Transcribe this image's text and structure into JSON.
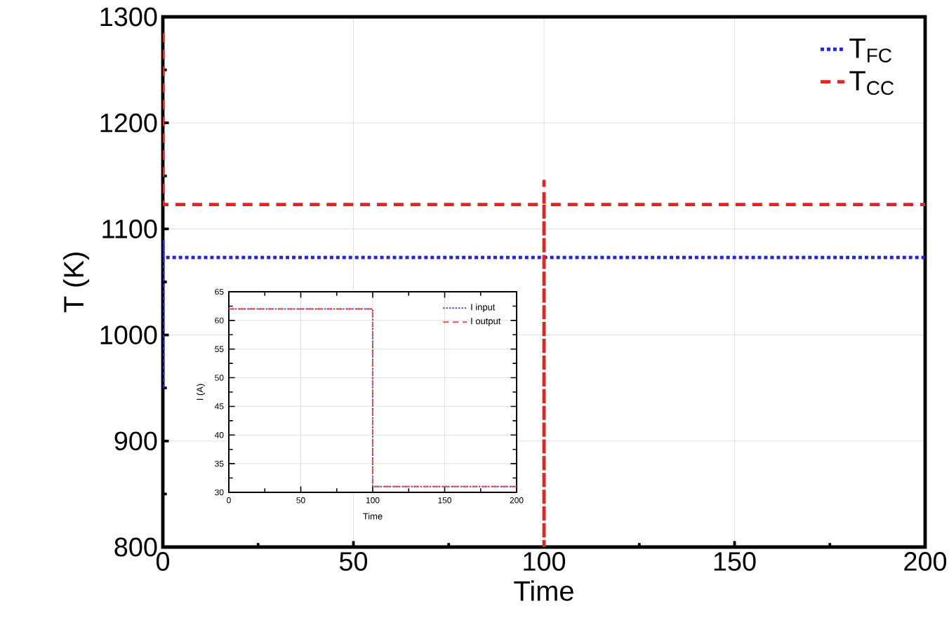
{
  "chart_data": [
    {
      "type": "line",
      "xlabel": "Time",
      "ylabel": "T (K)",
      "xlim": [
        0,
        200
      ],
      "ylim": [
        800,
        1300
      ],
      "xticks": [
        0,
        50,
        100,
        150,
        200
      ],
      "yticks": [
        800,
        900,
        1000,
        1100,
        1200,
        1300
      ],
      "grid": true,
      "legend": "top right",
      "marker": "none",
      "series": [
        {
          "name": "T$_{FC}$",
          "color": "#2323e6",
          "line_style": "dotted",
          "x": [
            0,
            0,
            0,
            100,
            200
          ],
          "values": [
            950,
            1090,
            1073,
            1073,
            1073
          ]
        },
        {
          "name": "T$_{CC}$",
          "color": "#e62323",
          "line_style": "dashed",
          "x": [
            0,
            0,
            0,
            100,
            100,
            100,
            100,
            200
          ],
          "values": [
            1285,
            1123,
            1123,
            1123,
            1145,
            800,
            1123,
            1123
          ]
        }
      ]
    },
    {
      "type": "line",
      "xlabel": "Time",
      "ylabel": "I (A)",
      "xlim": [
        0,
        200
      ],
      "ylim": [
        30,
        65
      ],
      "xticks": [
        0,
        50,
        100,
        150,
        200
      ],
      "yticks": [
        30,
        35,
        40,
        45,
        50,
        55,
        60,
        65
      ],
      "grid": true,
      "legend": "top right",
      "marker": "none",
      "series": [
        {
          "name": "I input",
          "color": "#4b4bdc",
          "line_style": "dotted",
          "x": [
            0,
            100,
            100,
            200
          ],
          "values": [
            62,
            62,
            31,
            31
          ]
        },
        {
          "name": "I output",
          "color": "#e65050",
          "line_style": "dashed",
          "x": [
            0,
            100,
            100,
            200
          ],
          "values": [
            62,
            62,
            31,
            31
          ]
        }
      ]
    }
  ]
}
